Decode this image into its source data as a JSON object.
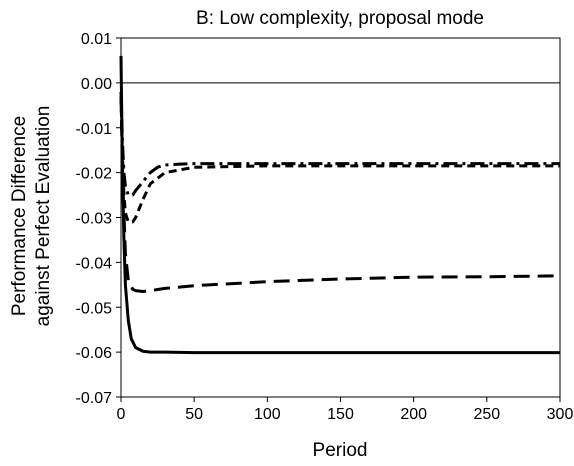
{
  "chart_data": {
    "type": "line",
    "title": "B: Low complexity, proposal mode",
    "xlabel": "Period",
    "ylabel": [
      "Performance Difference",
      "against  Perfect Evaluation"
    ],
    "xlim": [
      0,
      300
    ],
    "ylim": [
      -0.07,
      0.01
    ],
    "x_ticks": [
      0,
      50,
      100,
      150,
      200,
      250,
      300
    ],
    "y_ticks": [
      0.01,
      0.0,
      -0.01,
      -0.02,
      -0.03,
      -0.04,
      -0.05,
      -0.06,
      -0.07
    ],
    "x_tick_labels": [
      "0",
      "50",
      "100",
      "150",
      "200",
      "250",
      "300"
    ],
    "y_tick_labels": [
      "0.01",
      "0.00",
      "-0.01",
      "-0.02",
      "-0.03",
      "-0.04",
      "-0.05",
      "-0.06",
      "-0.07"
    ],
    "grid": false,
    "legend": "none",
    "reference_line": 0,
    "series": [
      {
        "style": "solid",
        "x": [
          0,
          1,
          2,
          3,
          5,
          7,
          10,
          15,
          20,
          30,
          50,
          100,
          200,
          300
        ],
        "y": [
          0.006,
          -0.02,
          -0.035,
          -0.045,
          -0.053,
          -0.057,
          -0.059,
          -0.0598,
          -0.06,
          -0.06,
          -0.0601,
          -0.0601,
          -0.0601,
          -0.0601
        ]
      },
      {
        "style": "long-dash",
        "x": [
          0,
          1,
          3,
          5,
          8,
          10,
          15,
          20,
          30,
          50,
          100,
          150,
          200,
          250,
          300
        ],
        "y": [
          -0.003,
          -0.02,
          -0.038,
          -0.044,
          -0.046,
          -0.0463,
          -0.0465,
          -0.0463,
          -0.0458,
          -0.0452,
          -0.0443,
          -0.0437,
          -0.0433,
          -0.0432,
          -0.043
        ]
      },
      {
        "style": "short-dash",
        "x": [
          0,
          1,
          2,
          3,
          5,
          8,
          10,
          15,
          20,
          30,
          50,
          100,
          200,
          300
        ],
        "y": [
          -0.003,
          -0.016,
          -0.025,
          -0.029,
          -0.031,
          -0.031,
          -0.03,
          -0.026,
          -0.0225,
          -0.02,
          -0.0188,
          -0.0185,
          -0.0185,
          -0.0185
        ]
      },
      {
        "style": "dash-dot",
        "x": [
          0,
          1,
          2,
          3,
          5,
          8,
          10,
          15,
          20,
          25,
          30,
          40,
          50,
          100,
          200,
          300
        ],
        "y": [
          -0.002,
          -0.013,
          -0.02,
          -0.023,
          -0.025,
          -0.025,
          -0.024,
          -0.022,
          -0.02,
          -0.0188,
          -0.0183,
          -0.0181,
          -0.018,
          -0.018,
          -0.018,
          -0.018
        ]
      }
    ]
  }
}
